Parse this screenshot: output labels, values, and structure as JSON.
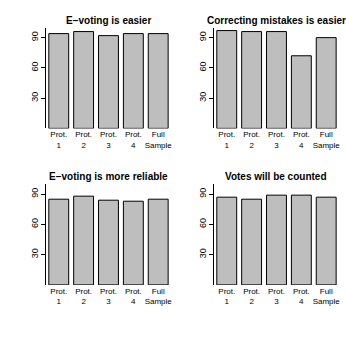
{
  "chart_data": [
    {
      "type": "bar",
      "title": "E−voting is easier",
      "categories": [
        "Prot.\n1",
        "Prot.\n2",
        "Prot.\n3",
        "Prot.\n4",
        "Full\nSample"
      ],
      "values": [
        94,
        96,
        92,
        94,
        94
      ],
      "color": "#bebebe",
      "ylim": [
        0,
        100
      ],
      "yticks": [
        30,
        60,
        90
      ]
    },
    {
      "type": "bar",
      "title": "Correcting mistakes is easier",
      "categories": [
        "Prot.\n1",
        "Prot.\n2",
        "Prot.\n3",
        "Prot.\n4",
        "Full\nSample"
      ],
      "values": [
        97,
        96,
        96,
        72,
        90
      ],
      "color": "#bebebe",
      "ylim": [
        0,
        100
      ],
      "yticks": [
        30,
        60,
        90
      ]
    },
    {
      "type": "bar",
      "title": "E−voting is more reliable",
      "categories": [
        "Prot.\n1",
        "Prot.\n2",
        "Prot.\n3",
        "Prot.\n4",
        "Full\nSample"
      ],
      "values": [
        85,
        88,
        84,
        83,
        85
      ],
      "color": "#bebebe",
      "ylim": [
        0,
        100
      ],
      "yticks": [
        30,
        60,
        90
      ]
    },
    {
      "type": "bar",
      "title": "Votes will be counted",
      "categories": [
        "Prot.\n1",
        "Prot.\n2",
        "Prot.\n3",
        "Prot.\n4",
        "Full\nSample"
      ],
      "values": [
        87,
        85,
        89,
        89,
        87
      ],
      "color": "#bebebe",
      "ylim": [
        0,
        100
      ],
      "yticks": [
        30,
        60,
        90
      ]
    }
  ]
}
